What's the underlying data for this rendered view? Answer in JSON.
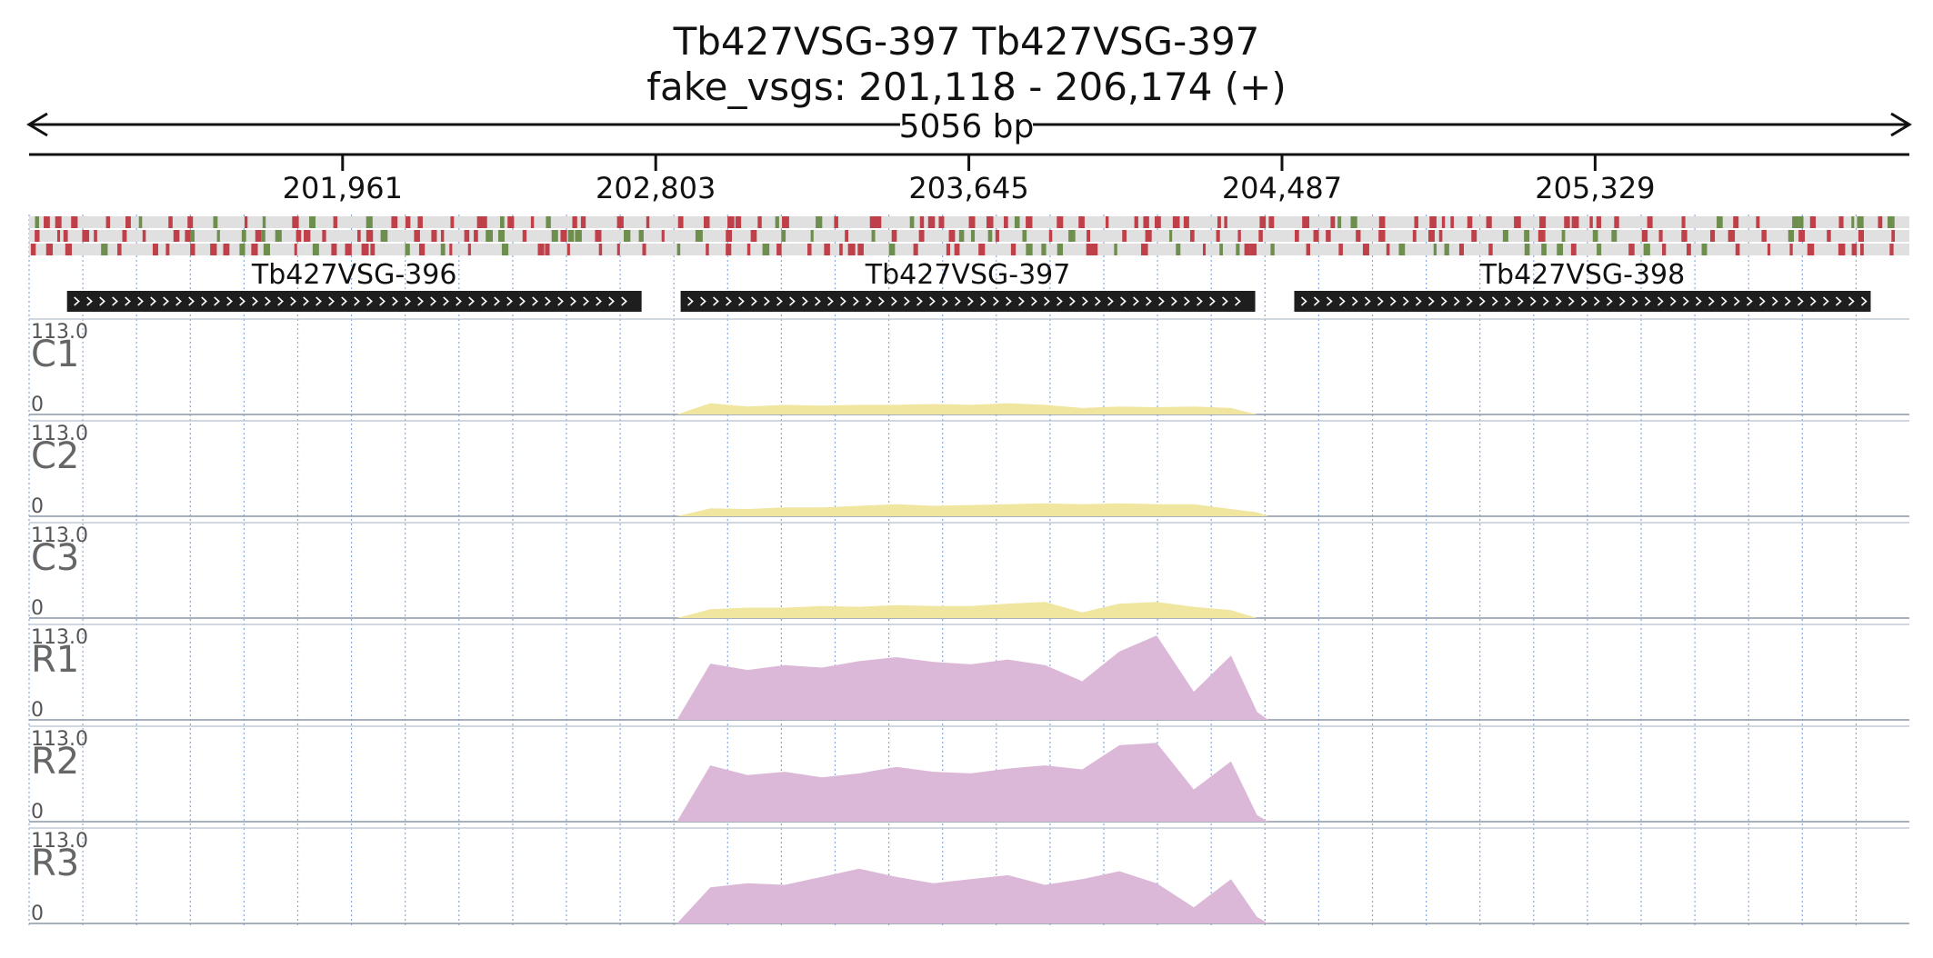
{
  "header": {
    "title_line1": "Tb427VSG-397  Tb427VSG-397",
    "title_line2": "fake_vsgs: 201,118 - 206,174 (+)",
    "span_label": "5056 bp"
  },
  "chart_data": {
    "type": "area",
    "region": {
      "chrom": "fake_vsgs",
      "start": 201118,
      "end": 206174,
      "strand": "+",
      "length_bp": 5056
    },
    "ruler_ticks": [
      "201,961",
      "202,803",
      "203,645",
      "204,487",
      "205,329"
    ],
    "ruler_tick_positions": [
      201961,
      202803,
      203645,
      204487,
      205329
    ],
    "grid": true,
    "colors": {
      "control": "#f0e6a0",
      "rnaseq": "#dcb8d8",
      "gene": "#1e1e1e",
      "track_bg": "#e0e0e0",
      "stop": "#c0404a",
      "start": "#6e8e4e",
      "grid": "#88aadd"
    },
    "genes": [
      {
        "name": "Tb427VSG-396",
        "start": 201220,
        "end": 202765,
        "strand": "+"
      },
      {
        "name": "Tb427VSG-397",
        "start": 202870,
        "end": 204415,
        "strand": "+"
      },
      {
        "name": "Tb427VSG-398",
        "start": 204520,
        "end": 206070,
        "strand": "+"
      }
    ],
    "coverage_x": [
      202860,
      202950,
      203050,
      203150,
      203250,
      203350,
      203450,
      203550,
      203650,
      203750,
      203850,
      203950,
      204050,
      204150,
      204250,
      204350,
      204420,
      204450
    ],
    "coverage_ylim": [
      0,
      113.0
    ],
    "series": [
      {
        "name": "C1",
        "group": "control",
        "max_label": "113.0",
        "min_label": "0",
        "values": [
          0,
          14,
          10,
          12,
          11,
          12,
          12,
          13,
          12,
          14,
          12,
          8,
          10,
          9,
          10,
          8,
          0,
          0
        ]
      },
      {
        "name": "C2",
        "group": "control",
        "max_label": "113.0",
        "min_label": "0",
        "values": [
          0,
          10,
          9,
          11,
          11,
          13,
          15,
          13,
          14,
          15,
          16,
          15,
          16,
          15,
          15,
          9,
          5,
          0
        ]
      },
      {
        "name": "C3",
        "group": "control",
        "max_label": "113.0",
        "min_label": "0",
        "values": [
          0,
          11,
          13,
          13,
          15,
          14,
          16,
          15,
          15,
          18,
          20,
          7,
          18,
          20,
          14,
          10,
          0,
          0
        ]
      },
      {
        "name": "R1",
        "group": "rnaseq",
        "max_label": "113.0",
        "min_label": "0",
        "values": [
          0,
          70,
          62,
          68,
          65,
          73,
          78,
          72,
          69,
          75,
          68,
          48,
          85,
          105,
          35,
          80,
          10,
          0
        ]
      },
      {
        "name": "R2",
        "group": "rnaseq",
        "max_label": "113.0",
        "min_label": "0",
        "values": [
          0,
          70,
          58,
          62,
          55,
          60,
          68,
          62,
          60,
          66,
          70,
          65,
          95,
          98,
          40,
          75,
          8,
          0
        ]
      },
      {
        "name": "R3",
        "group": "rnaseq",
        "max_label": "113.0",
        "min_label": "0",
        "values": [
          0,
          45,
          50,
          48,
          58,
          68,
          58,
          50,
          55,
          60,
          48,
          55,
          65,
          50,
          20,
          55,
          8,
          0
        ]
      }
    ]
  }
}
